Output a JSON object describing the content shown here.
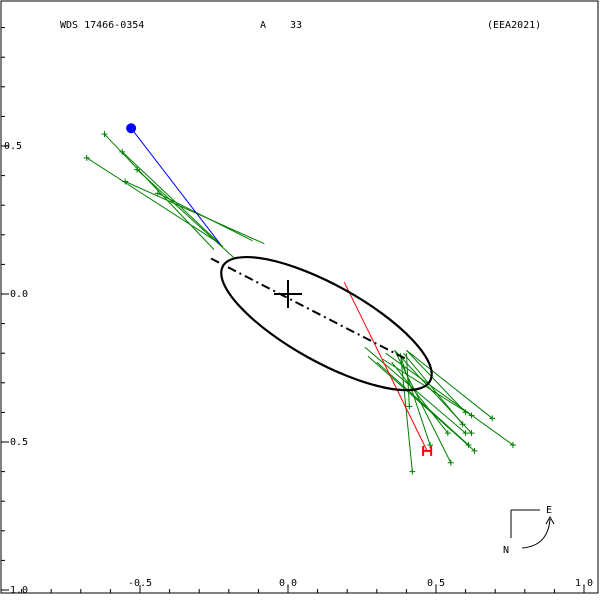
{
  "header": {
    "title_left": "WDS 17466-0354",
    "title_center_letter": "A",
    "title_center_number": "33",
    "title_right": "(EEA2021)"
  },
  "compass": {
    "east_label": "E",
    "north_label": "N"
  },
  "colors": {
    "orbit": "#000000",
    "obs_points": "#008000",
    "first_obs": "#0000ff",
    "last_obs": "#ff0000"
  },
  "chart_data": {
    "type": "scatter",
    "xlim": [
      -1.0,
      1.0
    ],
    "ylim": [
      -1.0,
      1.0
    ],
    "x_ticks": [
      {
        "value": -0.5,
        "label": "-0.5"
      },
      {
        "value": 0.0,
        "label": "0.0"
      },
      {
        "value": 0.5,
        "label": "0.5"
      },
      {
        "value": 1.0,
        "label": "1.0"
      }
    ],
    "y_ticks": [
      {
        "value": 0.5,
        "label": "0.5"
      },
      {
        "value": 0.0,
        "label": "-0.0"
      },
      {
        "value": -0.5,
        "label": "-0.5"
      },
      {
        "value": -1.0,
        "label": "-1.0"
      }
    ],
    "orbit_ellipse": {
      "center": [
        0.13,
        -0.1
      ],
      "semi_major": 0.4,
      "semi_minor": 0.13,
      "angle_deg": -29
    },
    "line_of_nodes": [
      [
        -0.26,
        0.12
      ],
      [
        0.4,
        -0.22
      ]
    ],
    "primary": [
      0.0,
      0.0
    ],
    "first_observation": {
      "point": [
        -0.53,
        0.56
      ],
      "orbit_point": [
        -0.23,
        0.17
      ]
    },
    "last_observation": {
      "point": [
        0.47,
        -0.53
      ],
      "orbit_point": [
        0.19,
        0.04
      ]
    },
    "observations": [
      {
        "obs": [
          -0.62,
          0.54
        ],
        "orbit": [
          -0.25,
          0.15
        ]
      },
      {
        "obs": [
          -0.68,
          0.46
        ],
        "orbit": [
          -0.23,
          0.17
        ]
      },
      {
        "obs": [
          -0.56,
          0.48
        ],
        "orbit": [
          -0.22,
          0.16
        ]
      },
      {
        "obs": [
          -0.51,
          0.42
        ],
        "orbit": [
          -0.18,
          0.12
        ]
      },
      {
        "obs": [
          -0.55,
          0.38
        ],
        "orbit": [
          -0.08,
          0.17
        ]
      },
      {
        "obs": [
          -0.44,
          0.34
        ],
        "orbit": [
          -0.12,
          0.18
        ]
      },
      {
        "obs": [
          0.42,
          -0.6
        ],
        "orbit": [
          0.38,
          -0.2
        ]
      },
      {
        "obs": [
          0.55,
          -0.57
        ],
        "orbit": [
          0.36,
          -0.19
        ]
      },
      {
        "obs": [
          0.48,
          -0.51
        ],
        "orbit": [
          0.38,
          -0.21
        ]
      },
      {
        "obs": [
          0.6,
          -0.47
        ],
        "orbit": [
          0.26,
          -0.18
        ]
      },
      {
        "obs": [
          0.63,
          -0.53
        ],
        "orbit": [
          0.27,
          -0.21
        ]
      },
      {
        "obs": [
          0.62,
          -0.47
        ],
        "orbit": [
          0.36,
          -0.19
        ]
      },
      {
        "obs": [
          0.61,
          -0.51
        ],
        "orbit": [
          0.3,
          -0.23
        ]
      },
      {
        "obs": [
          0.59,
          -0.44
        ],
        "orbit": [
          0.39,
          -0.2
        ]
      },
      {
        "obs": [
          0.62,
          -0.41
        ],
        "orbit": [
          0.32,
          -0.22
        ]
      },
      {
        "obs": [
          0.6,
          -0.4
        ],
        "orbit": [
          0.4,
          -0.19
        ]
      },
      {
        "obs": [
          0.69,
          -0.42
        ],
        "orbit": [
          0.4,
          -0.19
        ]
      },
      {
        "obs": [
          0.76,
          -0.51
        ],
        "orbit": [
          0.33,
          -0.2
        ]
      },
      {
        "obs": [
          0.41,
          -0.38
        ],
        "orbit": [
          0.4,
          -0.2
        ]
      },
      {
        "obs": [
          0.54,
          -0.47
        ],
        "orbit": [
          0.35,
          -0.23
        ]
      }
    ]
  }
}
